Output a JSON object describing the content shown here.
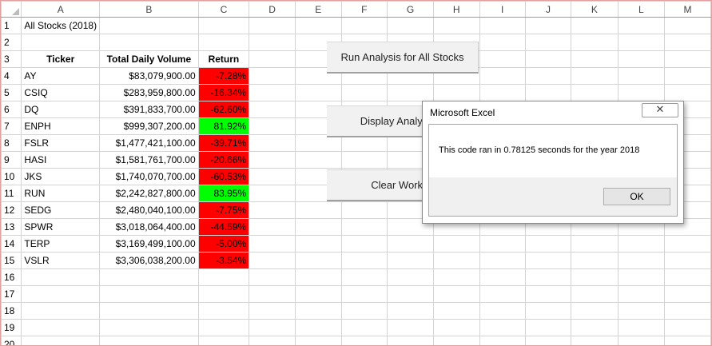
{
  "columns": [
    "A",
    "B",
    "C",
    "D",
    "E",
    "F",
    "G",
    "H",
    "I",
    "J",
    "K",
    "L",
    "M"
  ],
  "title_cell": "All Stocks (2018)",
  "headers": {
    "ticker": "Ticker",
    "volume": "Total Daily Volume",
    "return": "Return"
  },
  "rows": [
    {
      "ticker": "AY",
      "volume": "$83,079,900.00",
      "return": "-7.28%",
      "positive": false
    },
    {
      "ticker": "CSIQ",
      "volume": "$283,959,800.00",
      "return": "-16.34%",
      "positive": false
    },
    {
      "ticker": "DQ",
      "volume": "$391,833,700.00",
      "return": "-62.60%",
      "positive": false
    },
    {
      "ticker": "ENPH",
      "volume": "$999,307,200.00",
      "return": "81.92%",
      "positive": true
    },
    {
      "ticker": "FSLR",
      "volume": "$1,477,421,100.00",
      "return": "-39.71%",
      "positive": false
    },
    {
      "ticker": "HASI",
      "volume": "$1,581,761,700.00",
      "return": "-20.66%",
      "positive": false
    },
    {
      "ticker": "JKS",
      "volume": "$1,740,070,700.00",
      "return": "-60.53%",
      "positive": false
    },
    {
      "ticker": "RUN",
      "volume": "$2,242,827,800.00",
      "return": "83.95%",
      "positive": true
    },
    {
      "ticker": "SEDG",
      "volume": "$2,480,040,100.00",
      "return": "-7.75%",
      "positive": false
    },
    {
      "ticker": "SPWR",
      "volume": "$3,018,064,400.00",
      "return": "-44.59%",
      "positive": false
    },
    {
      "ticker": "TERP",
      "volume": "$3,169,499,100.00",
      "return": "-5.00%",
      "positive": false
    },
    {
      "ticker": "VSLR",
      "volume": "$3,306,038,200.00",
      "return": "-3.54%",
      "positive": false
    }
  ],
  "buttons": {
    "run_all": "Run Analysis for All Stocks",
    "display": "Display Analysis F",
    "clear": "Clear Worksh"
  },
  "dialog": {
    "title": "Microsoft Excel",
    "close": "✕",
    "message": "This code ran in 0.78125 seconds for the year 2018",
    "ok": "OK"
  },
  "colors": {
    "negative": "#ff0000",
    "positive": "#00ff00",
    "header_text": "#1f4e5f"
  }
}
